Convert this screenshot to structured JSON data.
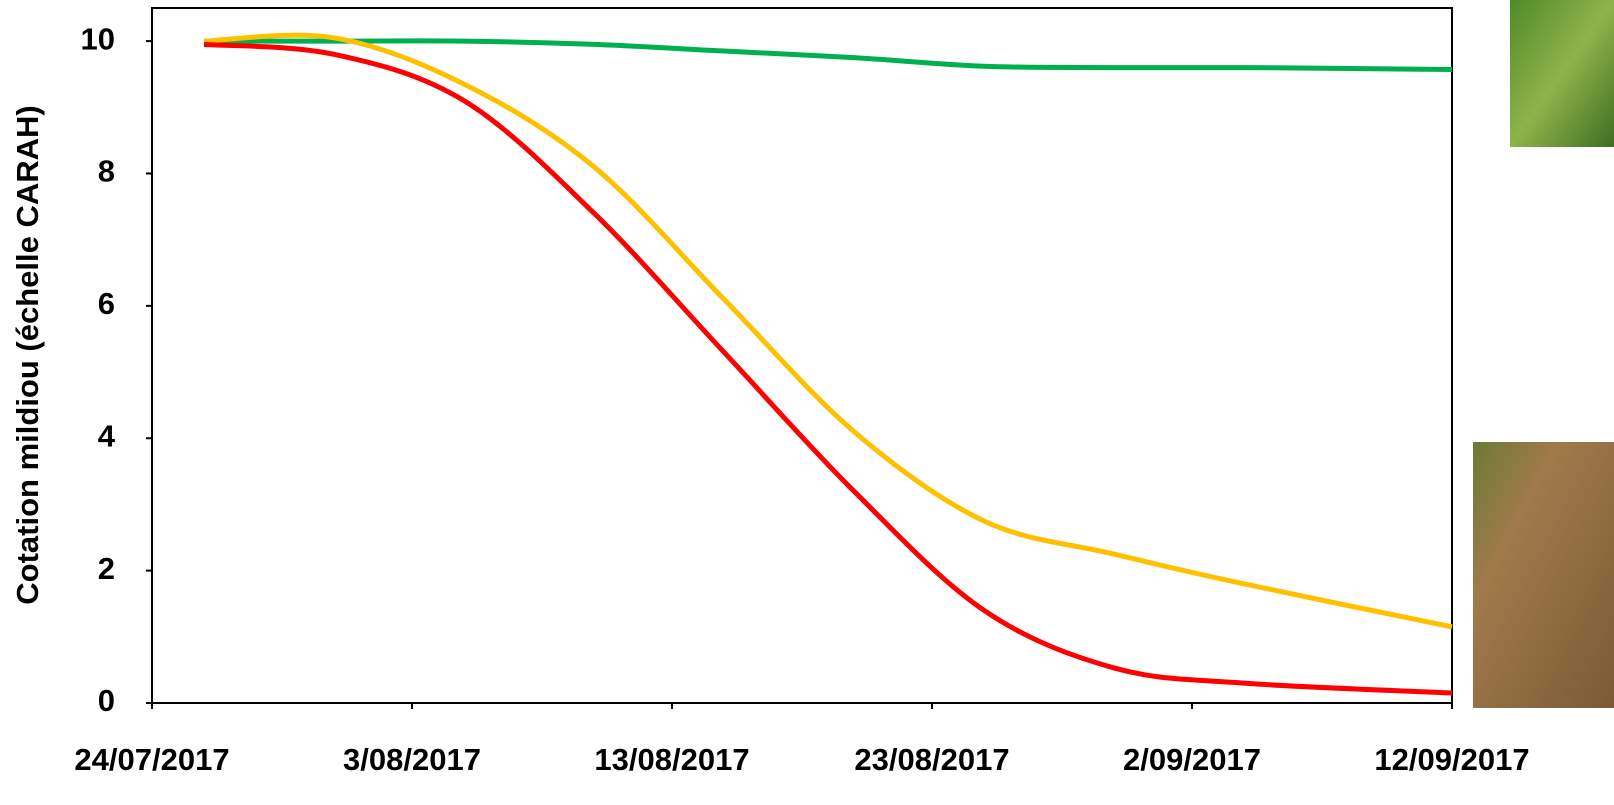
{
  "chart_data": {
    "type": "line",
    "ylabel": "Cotation mildiou (échelle CARAH)",
    "x": [
      "2017-07-26",
      "2017-07-31",
      "2017-08-05",
      "2017-08-10",
      "2017-08-15",
      "2017-08-20",
      "2017-08-25",
      "2017-08-30",
      "2017-09-04",
      "2017-09-12"
    ],
    "series": [
      {
        "color": "#00b050",
        "values": [
          10.0,
          10.0,
          10.0,
          9.95,
          9.85,
          9.75,
          9.62,
          9.6,
          9.6,
          9.57
        ]
      },
      {
        "color": "#ffc000",
        "values": [
          10.0,
          10.05,
          9.35,
          8.1,
          6.1,
          4.1,
          2.75,
          2.25,
          1.8,
          1.15
        ]
      },
      {
        "color": "#ff0000",
        "values": [
          9.95,
          9.8,
          9.1,
          7.4,
          5.3,
          3.2,
          1.4,
          0.53,
          0.3,
          0.15
        ]
      }
    ],
    "xlim": [
      "2017-07-24",
      "2017-09-12"
    ],
    "xticks": [
      {
        "value": "2017-07-24",
        "label": "24/07/2017"
      },
      {
        "value": "2017-08-03",
        "label": "3/08/2017"
      },
      {
        "value": "2017-08-13",
        "label": "13/08/2017"
      },
      {
        "value": "2017-08-23",
        "label": "23/08/2017"
      },
      {
        "value": "2017-09-02",
        "label": "2/09/2017"
      },
      {
        "value": "2017-09-12",
        "label": "12/09/2017"
      }
    ],
    "ylim": [
      0,
      10.5
    ],
    "yticks": [
      0,
      2,
      4,
      6,
      8,
      10
    ],
    "grid": false
  }
}
